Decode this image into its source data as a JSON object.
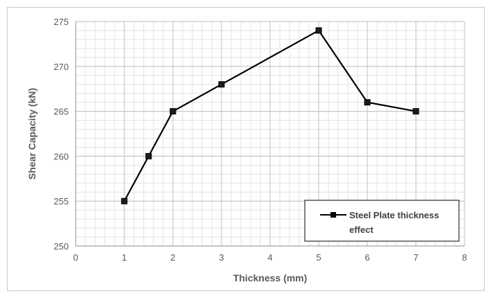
{
  "chart_data": {
    "type": "line",
    "title": "",
    "xlabel": "Thickness (mm)",
    "ylabel": "Shear Capacity (kN)",
    "xlim": [
      0,
      8
    ],
    "ylim": [
      250,
      275
    ],
    "x_ticks": [
      "0",
      "1",
      "2",
      "3",
      "4",
      "5",
      "6",
      "7",
      "8"
    ],
    "y_ticks": [
      "250",
      "255",
      "260",
      "265",
      "270",
      "275"
    ],
    "grid": true,
    "legend_position": "bottom-right",
    "series": [
      {
        "name": "Steel Plate thickness effect",
        "legend_lines": [
          "Steel Plate thickness",
          "effect"
        ],
        "color": "#000000",
        "marker": "square",
        "x": [
          1,
          1.5,
          2,
          3,
          5,
          6,
          7
        ],
        "y": [
          255,
          260,
          265,
          268,
          274,
          266,
          265
        ]
      }
    ]
  }
}
